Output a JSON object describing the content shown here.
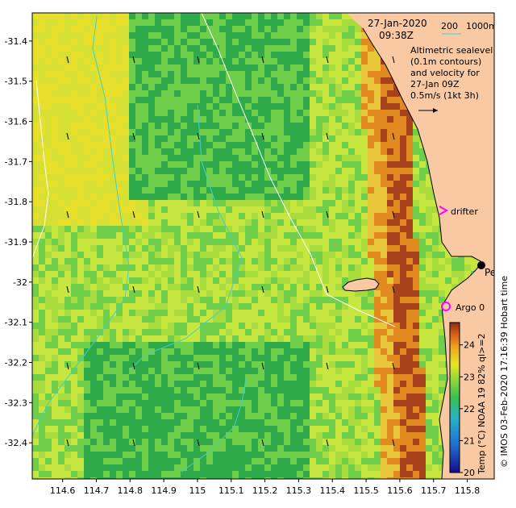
{
  "title": {
    "date": "27-Jan-2020",
    "time": "09:38Z"
  },
  "bathymetry_legend": {
    "label_200": "200",
    "label_1000": "1000m"
  },
  "description": {
    "line1": "Altimetric sealevel",
    "line2": "(0.1m contours)",
    "line3": "and velocity for",
    "line4": "27-Jan 09Z",
    "line5": "0.5m/s (1kt 3h)"
  },
  "markers": {
    "drifter": "drifter",
    "perth": "Perth",
    "argo": "Argo 0"
  },
  "credit": "© IMOS 03-Feb-2020 17:16:39 Hobart time",
  "colorbar": {
    "label": "Temp (°C) NOAA 19 82% ql>=2",
    "ticks": [
      "20",
      "21",
      "22",
      "23",
      "24"
    ],
    "range": [
      20,
      24.7
    ]
  },
  "axes": {
    "x_ticks": [
      "114.6",
      "114.7",
      "114.8",
      "114.9",
      "115",
      "115.1",
      "115.2",
      "115.3",
      "115.4",
      "115.5",
      "115.6",
      "115.7",
      "115.8"
    ],
    "y_ticks": [
      "-31.4",
      "-31.5",
      "-31.6",
      "-31.7",
      "-31.8",
      "-31.9",
      "-32",
      "-32.1",
      "-32.2",
      "-32.3",
      "-32.4"
    ],
    "x_range": [
      114.51,
      115.88
    ],
    "y_range": [
      -32.49,
      -31.33
    ]
  },
  "colors": {
    "land": "#f9c9a3",
    "warm_coast": "#e08a20",
    "hot_coast": "#a8421c",
    "mid_yellow": "#c8e640",
    "green": "#6fcf4a",
    "dark_green": "#2eaa4a",
    "bathy_200": "#ffffff",
    "bathy_1000": "#40d0d0",
    "drifter": "#ff00ff",
    "argo": "#ff00ff"
  }
}
